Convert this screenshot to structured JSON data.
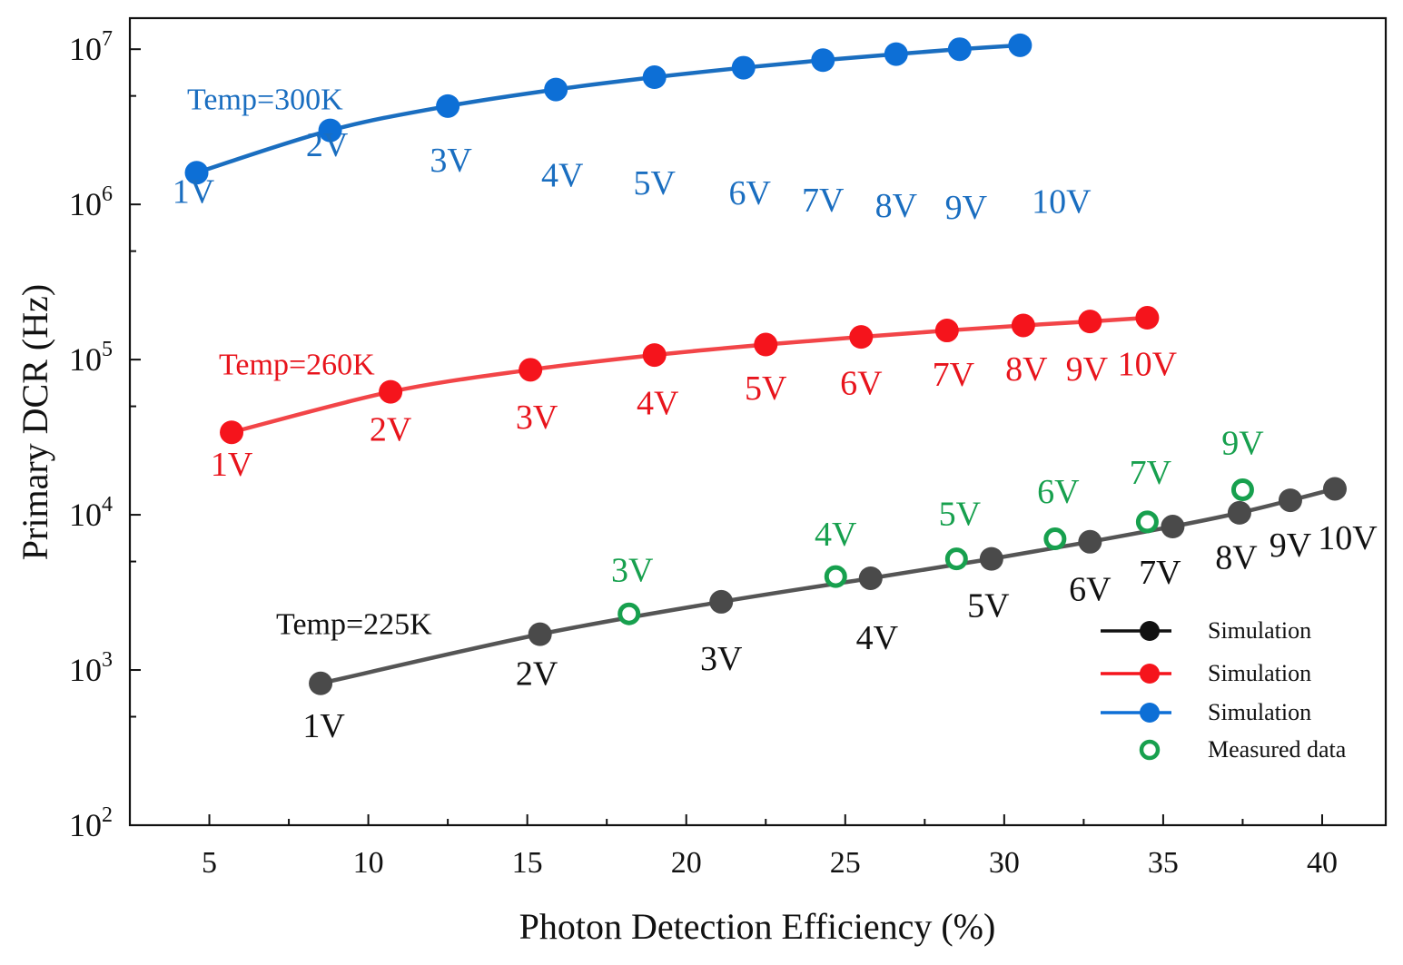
{
  "chart_data": {
    "type": "scatter",
    "xlabel": "Photon Detection Efficiency (%)",
    "ylabel": "Primary DCR (Hz)",
    "xlim": [
      2.5,
      42
    ],
    "ylim": [
      100,
      20000000
    ],
    "yscale": "log",
    "xticks": [
      5,
      10,
      15,
      20,
      25,
      30,
      35,
      40
    ],
    "yticks": [
      {
        "value": 100,
        "base": "10",
        "exp": "2"
      },
      {
        "value": 1000,
        "base": "10",
        "exp": "3"
      },
      {
        "value": 10000,
        "base": "10",
        "exp": "4"
      },
      {
        "value": 100000,
        "base": "10",
        "exp": "5"
      },
      {
        "value": 1000000,
        "base": "10",
        "exp": "6"
      },
      {
        "value": 10000000,
        "base": "10",
        "exp": "7"
      }
    ],
    "temp_labels": [
      {
        "text": "Temp=300K",
        "x": 4.3,
        "y": 4100000,
        "color": "#1a6ec0"
      },
      {
        "text": "Temp=260K",
        "x": 5.3,
        "y": 80000,
        "color": "#e8141c"
      },
      {
        "text": "Temp=225K",
        "x": 7.1,
        "y": 1700,
        "color": "#111111"
      }
    ],
    "series": [
      {
        "name": "Simulation",
        "temperature": "300K",
        "color": "#0d6fd6",
        "line_color": "#1a6ec0",
        "label_color": "#1a6ec0",
        "x": [
          4.6,
          8.8,
          12.5,
          15.9,
          19.0,
          21.8,
          24.3,
          26.6,
          28.6,
          30.5
        ],
        "y": [
          1600000,
          3000000,
          4300000,
          5500000,
          6600000,
          7600000,
          8500000,
          9300000,
          10000000,
          10600000
        ],
        "labels": [
          "1V",
          "2V",
          "3V",
          "4V",
          "5V",
          "6V",
          "7V",
          "8V",
          "9V",
          "10V"
        ],
        "label_pos": [
          [
            4.5,
            1020000
          ],
          [
            8.7,
            2050000
          ],
          [
            12.6,
            1630000
          ],
          [
            16.1,
            1300000
          ],
          [
            19.0,
            1160000
          ],
          [
            22.0,
            1000000
          ],
          [
            24.3,
            900000
          ],
          [
            26.6,
            830000
          ],
          [
            28.8,
            810000
          ],
          [
            31.8,
            880000
          ]
        ]
      },
      {
        "name": "Simulation",
        "temperature": "260K",
        "color": "#f5141c",
        "line_color": "#f24548",
        "label_color": "#e8141c",
        "x": [
          5.7,
          10.7,
          15.1,
          19.0,
          22.5,
          25.5,
          28.2,
          30.6,
          32.7,
          34.5
        ],
        "y": [
          34000,
          62000,
          86000,
          107000,
          125000,
          140000,
          154000,
          166000,
          176000,
          186000
        ],
        "labels": [
          "1V",
          "2V",
          "3V",
          "4V",
          "5V",
          "6V",
          "7V",
          "8V",
          "9V",
          "10V"
        ],
        "label_pos": [
          [
            5.7,
            17900
          ],
          [
            10.7,
            30000
          ],
          [
            15.3,
            36100
          ],
          [
            19.1,
            44400
          ],
          [
            22.5,
            55200
          ],
          [
            25.5,
            59500
          ],
          [
            28.4,
            67900
          ],
          [
            30.7,
            73500
          ],
          [
            32.6,
            73500
          ],
          [
            34.5,
            79000
          ]
        ]
      },
      {
        "name": "Simulation",
        "temperature": "225K",
        "color": "#4a4a4a",
        "line_color": "#555555",
        "label_color": "#111111",
        "x": [
          8.5,
          15.4,
          21.1,
          25.8,
          29.6,
          32.7,
          35.3,
          37.4,
          39.0,
          40.4
        ],
        "y": [
          820,
          1700,
          2750,
          3900,
          5200,
          6700,
          8400,
          10300,
          12400,
          14700
        ],
        "labels": [
          "1V",
          "2V",
          "3V",
          "4V",
          "5V",
          "6V",
          "7V",
          "8V",
          "9V",
          "10V"
        ],
        "label_pos": [
          [
            8.6,
            370
          ],
          [
            15.3,
            800
          ],
          [
            21.1,
            1000
          ],
          [
            26.0,
            1360
          ],
          [
            29.5,
            2200
          ],
          [
            32.7,
            2800
          ],
          [
            34.9,
            3600
          ],
          [
            37.3,
            4500
          ],
          [
            39.0,
            5400
          ],
          [
            40.8,
            6000
          ]
        ]
      },
      {
        "name": "Measured data",
        "temperature": "225K",
        "color": "#17a04e",
        "label_color": "#17a04e",
        "x": [
          18.2,
          24.7,
          28.5,
          31.6,
          34.5,
          37.5
        ],
        "y": [
          2300,
          4000,
          5200,
          7000,
          9000,
          14500
        ],
        "labels": [
          "3V",
          "4V",
          "5V",
          "6V",
          "7V",
          "9V"
        ],
        "label_pos": [
          [
            18.3,
            3720
          ],
          [
            24.7,
            6350
          ],
          [
            28.6,
            8560
          ],
          [
            31.7,
            11900
          ],
          [
            34.6,
            15800
          ],
          [
            37.5,
            24500
          ]
        ]
      }
    ],
    "legend": {
      "position": "bottom-right",
      "entries": [
        {
          "label": "Simulation",
          "marker": "filled",
          "color": "#111111"
        },
        {
          "label": "Simulation",
          "marker": "filled",
          "color": "#f5141c"
        },
        {
          "label": "Simulation",
          "marker": "filled",
          "color": "#0d6fd6"
        },
        {
          "label": "Measured data",
          "marker": "open",
          "color": "#17a04e"
        }
      ]
    }
  }
}
